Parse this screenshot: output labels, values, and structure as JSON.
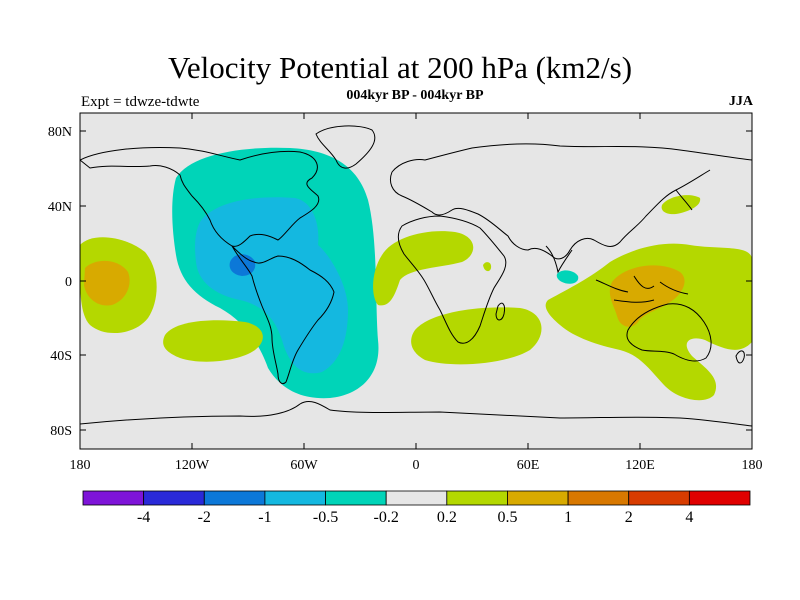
{
  "title": "Velocity Potential at 200 hPa (km2/s)",
  "subtitle": "004kyr BP - 004kyr BP",
  "left_label": "Expt = tdwze-tdwte",
  "season": "JJA",
  "lat_labels": [
    "80N",
    "40N",
    "0",
    "40S",
    "80S"
  ],
  "lon_labels": [
    "180",
    "120W",
    "60W",
    "0",
    "60E",
    "120E",
    "180"
  ],
  "colorbar": {
    "colors": [
      "#7e14d8",
      "#2a2ad8",
      "#0c78d8",
      "#14b8e0",
      "#00d4b8",
      "#e6e6e6",
      "#b4d800",
      "#d8aa00",
      "#d87800",
      "#d83c00",
      "#e00000"
    ],
    "labels": [
      "-4",
      "-2",
      "-1",
      "-0.5",
      "-0.2",
      "0.2",
      "0.5",
      "1",
      "2",
      "4"
    ]
  },
  "map": {
    "background_color": "#e6e6e6",
    "regions": [
      {
        "name": "americas-negative-outer",
        "level": "-0.5 to -0.2",
        "color": "#00d4b8"
      },
      {
        "name": "americas-negative-inner",
        "level": "-1 to -0.5",
        "color": "#14b8e0"
      },
      {
        "name": "central-america-minimum",
        "level": "-2 to -1",
        "color": "#0c78d8"
      },
      {
        "name": "central-pacific-positive",
        "level": "0.2 to 0.5",
        "color": "#b4d800"
      },
      {
        "name": "central-pacific-core",
        "level": "0.5 to 1",
        "color": "#d8aa00"
      },
      {
        "name": "south-pacific-positive",
        "level": "0.2 to 0.5",
        "color": "#b4d800"
      },
      {
        "name": "atlantic-africa-positive",
        "level": "0.2 to 0.5",
        "color": "#b4d800"
      },
      {
        "name": "southern-africa-positive",
        "level": "0.2 to 0.5",
        "color": "#b4d800"
      },
      {
        "name": "indian-ocean-negative",
        "level": "-0.5 to -0.2",
        "color": "#00d4b8"
      },
      {
        "name": "west-pacific-positive",
        "level": "0.2 to 0.5",
        "color": "#b4d800"
      },
      {
        "name": "maritime-continent-core",
        "level": "0.5 to 1",
        "color": "#d8aa00"
      },
      {
        "name": "japan-positive",
        "level": "0.2 to 0.5",
        "color": "#b4d800"
      }
    ]
  }
}
